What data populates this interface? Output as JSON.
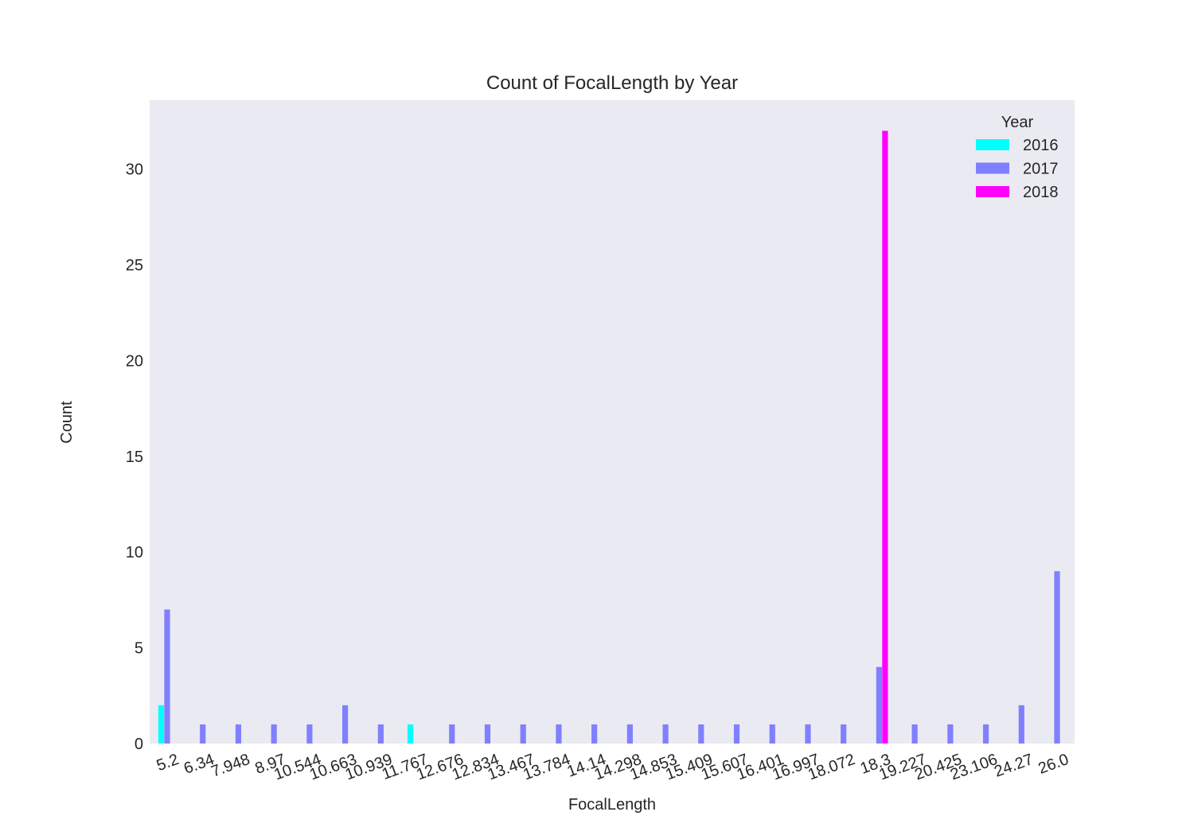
{
  "chart_data": {
    "type": "bar",
    "title": "Count of FocalLength by Year",
    "xlabel": "FocalLength",
    "ylabel": "Count",
    "ylim": [
      0,
      33.6
    ],
    "yticks": [
      0,
      5,
      10,
      15,
      20,
      25,
      30
    ],
    "grid": false,
    "legend": {
      "title": "Year",
      "placement": "top-right"
    },
    "categories": [
      "5.2",
      "6.34",
      "7.948",
      "8.97",
      "10.544",
      "10.663",
      "10.939",
      "11.767",
      "12.676",
      "12.834",
      "13.467",
      "13.784",
      "14.14",
      "14.298",
      "14.853",
      "15.409",
      "15.607",
      "16.401",
      "16.997",
      "18.072",
      "18.3",
      "19.227",
      "20.425",
      "23.106",
      "24.27",
      "26.0"
    ],
    "series": [
      {
        "name": "2016",
        "color": "#00ffff",
        "values": [
          2,
          0,
          0,
          0,
          0,
          0,
          0,
          1,
          0,
          0,
          0,
          0,
          0,
          0,
          0,
          0,
          0,
          0,
          0,
          0,
          0,
          0,
          0,
          0,
          0,
          0
        ]
      },
      {
        "name": "2017",
        "color": "#8080ff",
        "values": [
          7,
          1,
          1,
          1,
          1,
          2,
          1,
          0,
          1,
          1,
          1,
          1,
          1,
          1,
          1,
          1,
          1,
          1,
          1,
          1,
          4,
          1,
          1,
          1,
          2,
          9
        ]
      },
      {
        "name": "2018",
        "color": "#ff00ff",
        "values": [
          0,
          0,
          0,
          0,
          0,
          0,
          0,
          0,
          0,
          0,
          0,
          0,
          0,
          0,
          0,
          0,
          0,
          0,
          0,
          0,
          32,
          0,
          0,
          0,
          0,
          0
        ]
      }
    ],
    "plot_background": "#eaeaf2"
  }
}
